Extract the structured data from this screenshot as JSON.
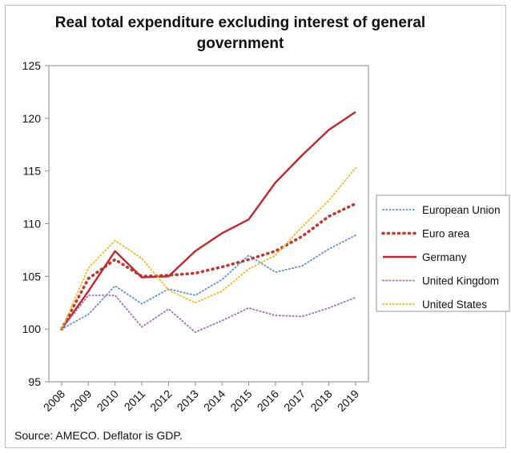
{
  "chart_data": {
    "type": "line",
    "title": "Real total expenditure excluding interest of general government",
    "source": "Source: AMECO. Deflator is GDP.",
    "x": [
      "2008",
      "2009",
      "2010",
      "2011",
      "2012",
      "2013",
      "2014",
      "2015",
      "2016",
      "2017",
      "2018",
      "2019"
    ],
    "ylim": [
      95,
      125
    ],
    "yticks": [
      95,
      100,
      105,
      110,
      115,
      120,
      125
    ],
    "grid": false,
    "legend_position": "right",
    "series": [
      {
        "name": "European Union",
        "color": "#5b8fd6",
        "style": "dotted",
        "values": [
          100,
          101.4,
          104.1,
          102.4,
          103.8,
          103.2,
          104.7,
          107.0,
          105.4,
          106.0,
          107.6,
          108.9
        ]
      },
      {
        "name": "Euro area",
        "color": "#c0392b",
        "style": "dotted-thick",
        "values": [
          100,
          104.8,
          106.6,
          105.0,
          105.1,
          105.3,
          105.9,
          106.6,
          107.4,
          108.8,
          110.7,
          111.9
        ]
      },
      {
        "name": "Germany",
        "color": "#c0282d",
        "style": "solid",
        "values": [
          100,
          103.6,
          107.4,
          104.9,
          105.0,
          107.4,
          109.1,
          110.4,
          113.9,
          116.5,
          118.9,
          120.6
        ]
      },
      {
        "name": "United Kingdom",
        "color": "#9a6fc2",
        "style": "dotted",
        "values": [
          100,
          103.2,
          103.2,
          100.2,
          101.9,
          99.7,
          100.8,
          102.0,
          101.3,
          101.2,
          102.0,
          103.0
        ]
      },
      {
        "name": "United States",
        "color": "#f5b716",
        "style": "dotted",
        "values": [
          100,
          105.8,
          108.4,
          106.7,
          103.7,
          102.5,
          103.6,
          105.7,
          107.0,
          109.7,
          112.2,
          115.3
        ]
      }
    ]
  }
}
